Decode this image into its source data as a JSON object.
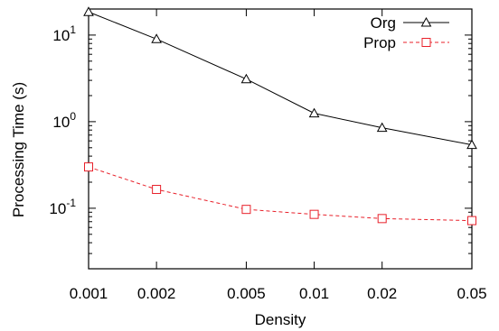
{
  "chart_data": {
    "type": "line",
    "xlabel": "Density",
    "ylabel": "Processing Time (s)",
    "x_scale": "log",
    "y_scale": "log",
    "xlim": [
      0.001,
      0.05
    ],
    "ylim": [
      0.02,
      20
    ],
    "x_ticks": [
      {
        "value": 0.001,
        "label": "0.001"
      },
      {
        "value": 0.002,
        "label": "0.002"
      },
      {
        "value": 0.005,
        "label": "0.005"
      },
      {
        "value": 0.01,
        "label": "0.01"
      },
      {
        "value": 0.02,
        "label": "0.02"
      },
      {
        "value": 0.05,
        "label": "0.05"
      }
    ],
    "y_ticks": [
      {
        "value": 10,
        "base": "10",
        "exp": "1"
      },
      {
        "value": 1,
        "base": "10",
        "exp": "0"
      },
      {
        "value": 0.1,
        "base": "10",
        "exp": "-1"
      }
    ],
    "grid": false,
    "legend_position": "top-right",
    "x": [
      0.001,
      0.002,
      0.005,
      0.01,
      0.02,
      0.05
    ],
    "series": [
      {
        "name": "Org",
        "values": [
          18.5,
          9.0,
          3.1,
          1.25,
          0.85,
          0.54
        ],
        "color": "#000000",
        "marker": "triangle",
        "dash": "solid"
      },
      {
        "name": "Prop",
        "values": [
          0.3,
          0.165,
          0.097,
          0.085,
          0.076,
          0.072
        ],
        "color": "#e8202a",
        "marker": "square",
        "dash": "dashed"
      }
    ]
  }
}
